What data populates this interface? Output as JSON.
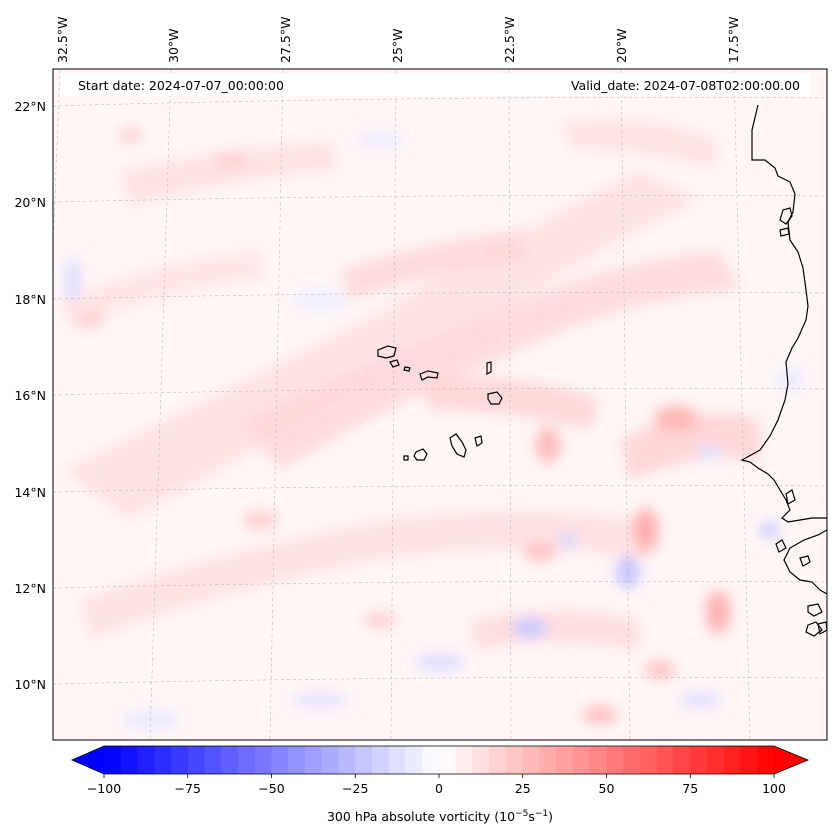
{
  "map": {
    "start_date": "Start date: 2024-07-07_00:00:00",
    "valid_date": "Valid_date: 2024-07-08T02:00:00.00",
    "lon_labels": [
      "32.5°W",
      "30°W",
      "27.5°W",
      "25°W",
      "22.5°W",
      "20°W",
      "17.5°W"
    ],
    "lat_labels": [
      "22°N",
      "20°N",
      "18°N",
      "16°N",
      "14°N",
      "12°N",
      "10°N"
    ],
    "colorbar": {
      "label_text": "300 hPa absolute vorticity (10",
      "label_exp1": "−5",
      "label_mid": "s",
      "label_exp2": "−1",
      "label_end": ")",
      "ticks": [
        "−100",
        "−75",
        "−50",
        "−25",
        "0",
        "25",
        "50",
        "75",
        "100"
      ],
      "min": -100,
      "max": 100,
      "levels": 40,
      "colormap": "bwr",
      "color_low": "#0000ff",
      "color_mid": "#ffffff",
      "color_high": "#ff0000"
    }
  }
}
